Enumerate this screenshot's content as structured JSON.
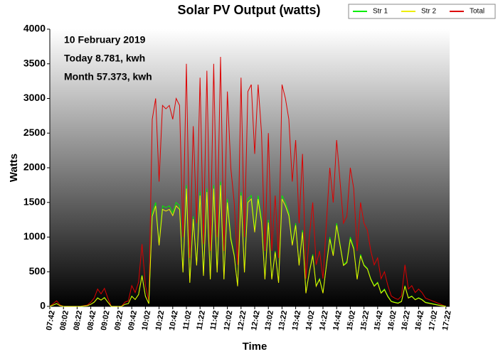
{
  "chart_data": {
    "type": "line",
    "title": "Solar PV Output (watts)",
    "x_label": "Time",
    "y_label": "Watts",
    "annotations": [
      "10 February 2019",
      "Today 8.781, kwh",
      "Month 57.373, kwh"
    ],
    "categories": [
      "07:42",
      null,
      null,
      null,
      "08:02",
      null,
      null,
      null,
      "08:22",
      null,
      null,
      null,
      "08:42",
      null,
      null,
      null,
      "09:02",
      null,
      null,
      null,
      "09:22",
      null,
      null,
      null,
      "09:42",
      null,
      null,
      null,
      "10:02",
      null,
      null,
      null,
      "10:22",
      null,
      null,
      null,
      "10:42",
      null,
      null,
      null,
      "11:02",
      null,
      null,
      null,
      "11:22",
      null,
      null,
      null,
      "11:42",
      null,
      null,
      null,
      "12:02",
      null,
      null,
      null,
      "12:22",
      null,
      null,
      null,
      "12:42",
      null,
      null,
      null,
      "13:02",
      null,
      null,
      null,
      "13:22",
      null,
      null,
      null,
      "13:42",
      null,
      null,
      null,
      "14:02",
      null,
      null,
      null,
      "14:22",
      null,
      null,
      null,
      "14:42",
      null,
      null,
      null,
      "15:02",
      null,
      null,
      null,
      "15:22",
      null,
      null,
      null,
      "15:42",
      null,
      null,
      null,
      "16:02",
      null,
      null,
      null,
      "16:22",
      null,
      null,
      null,
      "16:42",
      null,
      null,
      null,
      "17:02",
      null,
      null,
      null,
      "17:22"
    ],
    "series": [
      {
        "name": "Total",
        "color": "#dd0000",
        "values": [
          0,
          40,
          80,
          20,
          0,
          0,
          0,
          0,
          0,
          0,
          10,
          20,
          60,
          120,
          250,
          180,
          260,
          120,
          0,
          0,
          0,
          0,
          60,
          80,
          300,
          200,
          350,
          900,
          300,
          80,
          2700,
          3000,
          1800,
          2900,
          2850,
          2900,
          2700,
          3000,
          2900,
          1000,
          3500,
          700,
          2600,
          1200,
          3300,
          900,
          3400,
          800,
          3500,
          1000,
          3600,
          800,
          3100,
          2000,
          1500,
          600,
          3300,
          1000,
          3100,
          3200,
          2200,
          3200,
          2500,
          800,
          2500,
          800,
          1600,
          700,
          3200,
          3000,
          2700,
          1800,
          2400,
          1200,
          2200,
          400,
          1000,
          1500,
          600,
          800,
          400,
          1200,
          2000,
          1500,
          2400,
          1800,
          1200,
          1300,
          2000,
          1700,
          800,
          1500,
          1200,
          1100,
          800,
          600,
          700,
          400,
          500,
          300,
          150,
          120,
          100,
          150,
          600,
          250,
          300,
          200,
          250,
          200,
          120,
          100,
          80,
          60,
          40,
          20,
          0
        ]
      },
      {
        "name": "Str 1",
        "color": "#00ee00",
        "values": [
          0,
          20,
          40,
          10,
          0,
          0,
          0,
          0,
          0,
          0,
          5,
          10,
          30,
          60,
          125,
          90,
          130,
          60,
          0,
          0,
          0,
          0,
          30,
          40,
          150,
          100,
          175,
          450,
          150,
          40,
          1350,
          1500,
          900,
          1450,
          1425,
          1450,
          1350,
          1500,
          1450,
          500,
          1750,
          350,
          1300,
          600,
          1650,
          450,
          1700,
          400,
          1750,
          500,
          1800,
          400,
          1550,
          1000,
          750,
          300,
          1650,
          500,
          1550,
          1600,
          1100,
          1600,
          1250,
          400,
          1250,
          400,
          800,
          350,
          1600,
          1500,
          1350,
          900,
          1200,
          600,
          1100,
          200,
          500,
          750,
          300,
          400,
          200,
          600,
          1000,
          750,
          1200,
          900,
          600,
          650,
          1000,
          850,
          400,
          750,
          600,
          550,
          400,
          300,
          350,
          200,
          250,
          150,
          75,
          60,
          50,
          75,
          300,
          125,
          150,
          100,
          125,
          100,
          60,
          50,
          40,
          30,
          20,
          10,
          0
        ]
      },
      {
        "name": "Str 2",
        "color": "#eeee00",
        "values": [
          0,
          20,
          40,
          10,
          0,
          0,
          0,
          0,
          0,
          0,
          5,
          10,
          30,
          60,
          120,
          90,
          125,
          60,
          0,
          0,
          0,
          0,
          30,
          40,
          145,
          100,
          170,
          440,
          145,
          40,
          1300,
          1450,
          880,
          1400,
          1375,
          1400,
          1310,
          1450,
          1400,
          490,
          1700,
          340,
          1260,
          590,
          1600,
          440,
          1650,
          390,
          1700,
          490,
          1750,
          390,
          1500,
          970,
          730,
          290,
          1600,
          490,
          1500,
          1550,
          1070,
          1550,
          1210,
          390,
          1210,
          390,
          780,
          340,
          1550,
          1450,
          1310,
          880,
          1170,
          590,
          1070,
          190,
          490,
          730,
          290,
          390,
          190,
          590,
          970,
          730,
          1170,
          880,
          590,
          630,
          970,
          830,
          390,
          730,
          590,
          540,
          390,
          290,
          340,
          190,
          240,
          140,
          70,
          55,
          45,
          70,
          290,
          120,
          145,
          95,
          120,
          95,
          55,
          45,
          35,
          25,
          15,
          5,
          0
        ]
      }
    ],
    "ylim": [
      0,
      4000
    ],
    "yticks": [
      0,
      500,
      1000,
      1500,
      2000,
      2500,
      3000,
      3500,
      4000
    ],
    "legend": "top-right"
  }
}
